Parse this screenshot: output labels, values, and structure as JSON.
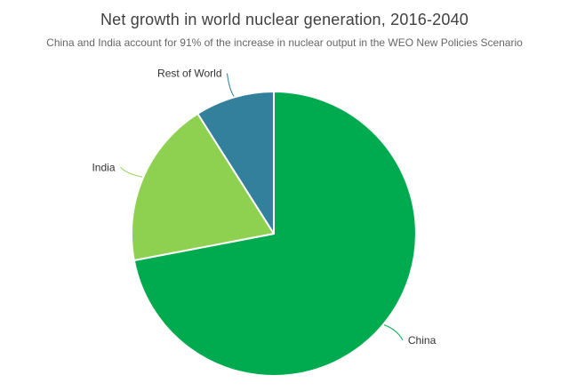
{
  "chart_data": {
    "type": "pie",
    "title": "Net growth in world nuclear generation, 2016-2040",
    "subtitle": "China and India account for 91% of the increase in nuclear output in the WEO New Policies Scenario",
    "unit": "%",
    "start_angle_deg": 0,
    "direction": "clockwise",
    "legend": "none",
    "data_labels": "outside-with-curved-connectors",
    "slice_border_color": "#ffffff",
    "background_color": "#ffffff",
    "title_color": "#404040",
    "subtitle_color": "#666666",
    "label_text_color": "#333333",
    "slices": [
      {
        "label": "China",
        "value": 72,
        "color": "#00ab4f"
      },
      {
        "label": "India",
        "value": 19,
        "color": "#8ed04f"
      },
      {
        "label": "Rest of World",
        "value": 9,
        "color": "#33809c"
      }
    ]
  }
}
